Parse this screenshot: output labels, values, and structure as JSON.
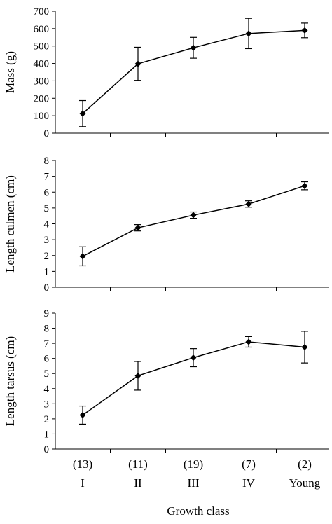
{
  "chart_data": {
    "type": "line",
    "categories": [
      "I",
      "II",
      "III",
      "IV",
      "Young"
    ],
    "sample_sizes": [
      "(13)",
      "(11)",
      "(19)",
      "(7)",
      "(2)"
    ],
    "xlabel": "Growth class",
    "color": "#000000",
    "panels": [
      {
        "ylabel": "Mass (g)",
        "ylim": [
          0,
          700
        ],
        "yticks": [
          0,
          100,
          200,
          300,
          400,
          500,
          600,
          700
        ],
        "values": [
          112,
          398,
          490,
          572,
          590
        ],
        "errors": [
          [
            75,
            75
          ],
          [
            95,
            95
          ],
          [
            60,
            60
          ],
          [
            87,
            87
          ],
          [
            42,
            42
          ]
        ]
      },
      {
        "ylabel": "Length culmen (cm)",
        "ylim": [
          0,
          8
        ],
        "yticks": [
          0,
          1,
          2,
          3,
          4,
          5,
          6,
          7,
          8
        ],
        "values": [
          1.95,
          3.75,
          4.55,
          5.25,
          6.4
        ],
        "errors": [
          [
            0.6,
            0.6
          ],
          [
            0.2,
            0.2
          ],
          [
            0.2,
            0.2
          ],
          [
            0.2,
            0.2
          ],
          [
            0.25,
            0.25
          ]
        ]
      },
      {
        "ylabel": "Length tarsus (cm)",
        "ylim": [
          0,
          9
        ],
        "yticks": [
          0,
          1,
          2,
          3,
          4,
          5,
          6,
          7,
          8,
          9
        ],
        "values": [
          2.25,
          4.85,
          6.05,
          7.1,
          6.75
        ],
        "errors": [
          [
            0.6,
            0.6
          ],
          [
            0.95,
            0.95
          ],
          [
            0.6,
            0.6
          ],
          [
            0.35,
            0.35
          ],
          [
            1.05,
            1.05
          ]
        ]
      }
    ]
  }
}
